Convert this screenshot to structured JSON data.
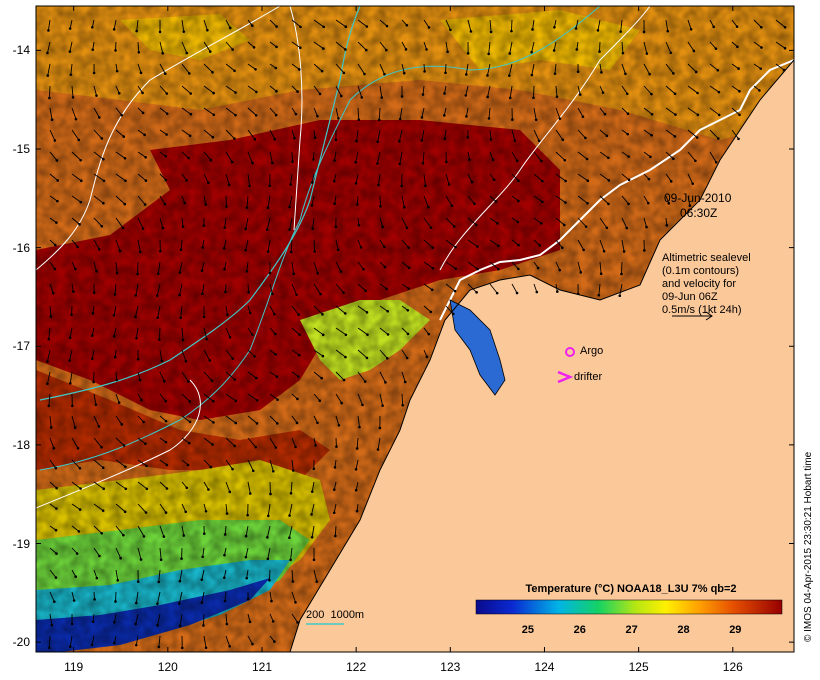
{
  "figure": {
    "date_label": "09-Jun-2010",
    "time_label": "06:30Z",
    "altimetry_note": [
      "Altimetric sealevel",
      "(0.1m contours)",
      "and velocity for",
      "09-Jun 06Z",
      "0.5m/s (1kt 24h)"
    ],
    "credit": "© IMOS 04-Apr-2015 23:30:21 Hobart time",
    "legend": {
      "argo_label": "Argo",
      "drifter_label": "drifter",
      "isobath_label": "200  1000m"
    }
  },
  "axes": {
    "y_ticks": [
      "-14",
      "-15",
      "-16",
      "-17",
      "-18",
      "-19",
      "-20"
    ],
    "x_ticks": [
      "119",
      "120",
      "121",
      "122",
      "123",
      "124",
      "125",
      "126"
    ],
    "lon_range": [
      118.6,
      126.65
    ],
    "lat_range": [
      -20.1,
      -13.55
    ]
  },
  "colorbar": {
    "title": "Temperature (°C) NOAA18_L3U 7% qb=2",
    "ticks": [
      "25",
      "26",
      "27",
      "28",
      "29"
    ],
    "range": [
      24.0,
      29.9
    ]
  },
  "colors": {
    "land": "#fbc89a",
    "argo": "#ee22ee",
    "drifter": "#ee22ee",
    "isobath": "#40c8c8",
    "contour": "#ffffff"
  }
}
